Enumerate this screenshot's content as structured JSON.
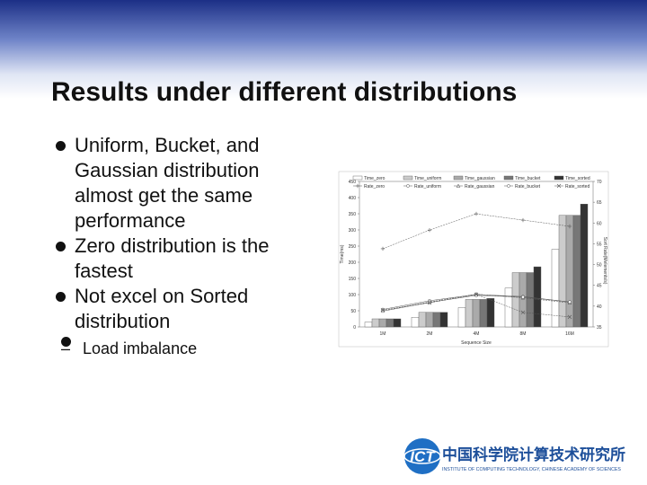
{
  "slide": {
    "title": "Results under different distributions",
    "bullets": [
      "Uniform, Bucket, and Gaussian distribution almost get the same performance",
      "Zero distribution is the fastest",
      "Not excel on Sorted distribution"
    ],
    "sub_bullets": [
      "Load imbalance"
    ]
  },
  "logo": {
    "badge": "ICT",
    "name_cn": "中国科学院计算技术研究所",
    "name_en": "INSTITUTE OF COMPUTING TECHNOLOGY, CHINESE ACADEMY OF SCIENCES"
  },
  "chart_data": {
    "type": "bar",
    "categories": [
      "1M",
      "2M",
      "4M",
      "8M",
      "16M"
    ],
    "x_label": "Sequence Size",
    "y_label": "Time(ms)",
    "y2_label": "Sort Rate(Melements/s)",
    "ylim": [
      0,
      450
    ],
    "yticks": [
      0,
      50,
      100,
      150,
      200,
      250,
      300,
      350,
      400,
      450
    ],
    "y2lim": [
      35,
      70
    ],
    "y2ticks": [
      35,
      40,
      45,
      50,
      55,
      60,
      65,
      70
    ],
    "series": [
      {
        "name": "Time_zero",
        "color": "#ffffff",
        "values": [
          15,
          30,
          60,
          120,
          240
        ]
      },
      {
        "name": "Time_uniform",
        "color": "#cccccc",
        "values": [
          25,
          45,
          85,
          168,
          345
        ]
      },
      {
        "name": "Time_gaussian",
        "color": "#aaaaaa",
        "values": [
          25,
          45,
          85,
          168,
          345
        ]
      },
      {
        "name": "Time_bucket",
        "color": "#777777",
        "values": [
          25,
          45,
          85,
          168,
          345
        ]
      },
      {
        "name": "Time_sorted",
        "color": "#333333",
        "values": [
          25,
          45,
          88,
          186,
          380
        ]
      },
      {
        "name": "Rate_zero",
        "type": "line",
        "axis": "y2",
        "marker": "+",
        "color": "#555555",
        "values": [
          53.8,
          58.3,
          62.2,
          60.7,
          59.2
        ]
      },
      {
        "name": "Rate_uniform",
        "type": "line",
        "axis": "y2",
        "marker": "o",
        "color": "#555555",
        "values": [
          39.2,
          41.3,
          42.8,
          42.3,
          41.0
        ]
      },
      {
        "name": "Rate_gaussian",
        "type": "line",
        "axis": "y2",
        "marker": "^",
        "color": "#555555",
        "values": [
          39.0,
          41.0,
          42.9,
          42.0,
          40.8
        ]
      },
      {
        "name": "Rate_bucket",
        "type": "line",
        "axis": "y2",
        "marker": "o",
        "color": "#555555",
        "values": [
          38.8,
          40.9,
          42.6,
          42.2,
          41.0
        ]
      },
      {
        "name": "Rate_sorted",
        "type": "line",
        "axis": "y2",
        "marker": "x",
        "color": "#555555",
        "values": [
          39.0,
          40.8,
          42.8,
          38.5,
          37.4
        ]
      }
    ]
  }
}
